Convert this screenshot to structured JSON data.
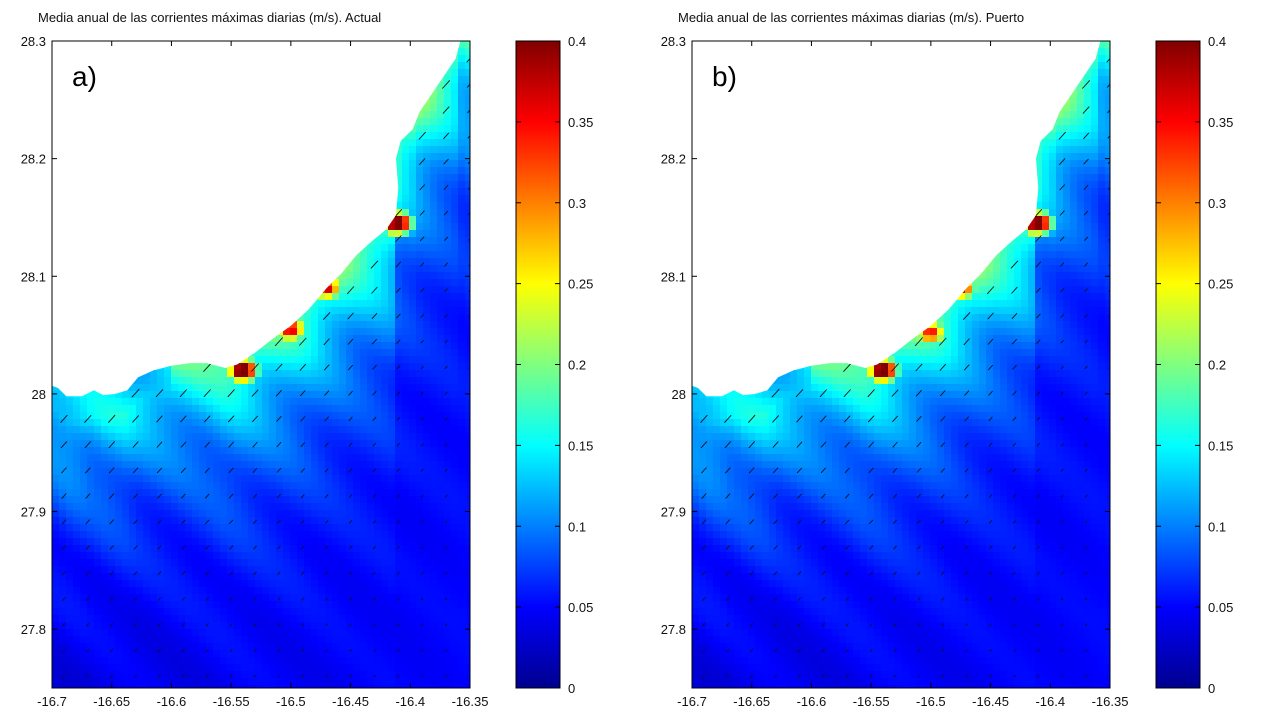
{
  "figure": {
    "panels": [
      {
        "title": "Media anual de las corrientes máximas diarias (m/s). Actual",
        "letter": "a)"
      },
      {
        "title": "Media anual de las corrientes máximas diarias (m/s). Puerto",
        "letter": "b)"
      }
    ],
    "colormap": "jet"
  },
  "chart_data": [
    {
      "type": "heatmap",
      "title": "Media anual de las corrientes máximas diarias (m/s). Actual",
      "xlim": [
        -16.7,
        -16.35
      ],
      "ylim": [
        27.75,
        28.3
      ],
      "x_ticks": [
        "-16.7",
        "-16.65",
        "-16.6",
        "-16.55",
        "-16.5",
        "-16.45",
        "-16.4",
        "-16.35"
      ],
      "y_ticks": [
        "28.3",
        "28.2",
        "28.1",
        "28",
        "27.9",
        "27.8"
      ],
      "colorbar": {
        "range": [
          0,
          0.4
        ],
        "ticks": [
          "0",
          "0.05",
          "0.1",
          "0.15",
          "0.2",
          "0.25",
          "0.3",
          "0.35",
          "0.4"
        ]
      },
      "hotspots": [
        {
          "lon": -16.54,
          "lat": 28.02,
          "value": 0.38
        },
        {
          "lon": -16.41,
          "lat": 28.145,
          "value": 0.38
        },
        {
          "lon": -16.47,
          "lat": 28.09,
          "value": 0.27
        },
        {
          "lon": -16.5,
          "lat": 28.055,
          "value": 0.26
        }
      ],
      "background_value_range": [
        0.03,
        0.17
      ]
    },
    {
      "type": "heatmap",
      "title": "Media anual de las corrientes máximas diarias (m/s). Puerto",
      "xlim": [
        -16.7,
        -16.35
      ],
      "ylim": [
        27.75,
        28.3
      ],
      "x_ticks": [
        "-16.7",
        "-16.65",
        "-16.6",
        "-16.55",
        "-16.5",
        "-16.45",
        "-16.4",
        "-16.35"
      ],
      "y_ticks": [
        "28.3",
        "28.2",
        "28.1",
        "28",
        "27.9",
        "27.8"
      ],
      "colorbar": {
        "range": [
          0,
          0.4
        ],
        "ticks": [
          "0",
          "0.05",
          "0.1",
          "0.15",
          "0.2",
          "0.25",
          "0.3",
          "0.35",
          "0.4"
        ]
      },
      "hotspots": [
        {
          "lon": -16.54,
          "lat": 28.02,
          "value": 0.38
        },
        {
          "lon": -16.41,
          "lat": 28.145,
          "value": 0.38
        },
        {
          "lon": -16.475,
          "lat": 28.09,
          "value": 0.27
        },
        {
          "lon": -16.5,
          "lat": 28.052,
          "value": 0.24
        }
      ],
      "background_value_range": [
        0.03,
        0.17
      ]
    }
  ]
}
